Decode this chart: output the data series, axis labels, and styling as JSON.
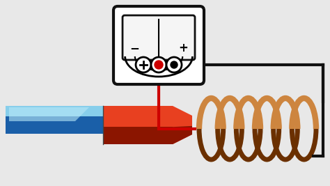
{
  "bg_color": "#e8e8e8",
  "magnet_blue_top": "#87ceeb",
  "magnet_blue_bot": "#1a5fa8",
  "magnet_red_top": "#e84020",
  "magnet_red_bot": "#8b1500",
  "coil_color": "#b5651d",
  "coil_dark": "#6b3000",
  "coil_light": "#cd853f",
  "wire_red": "#cc0000",
  "wire_black": "#111111",
  "meter_bg": "#ffffff",
  "meter_border": "#111111"
}
